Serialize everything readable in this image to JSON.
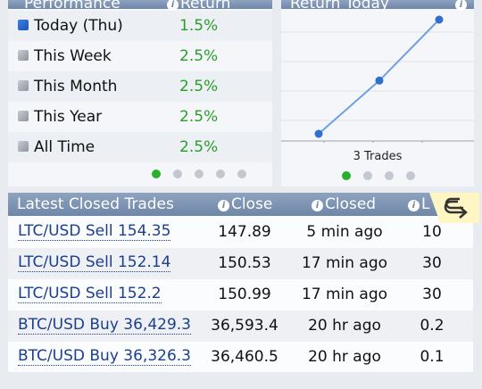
{
  "performance": {
    "title": "Performance",
    "return_label": "Return",
    "rows": [
      {
        "label": "Today (Thu)",
        "value": "1.5%",
        "active": true
      },
      {
        "label": "This Week",
        "value": "2.5%",
        "active": false
      },
      {
        "label": "This Month",
        "value": "2.5%",
        "active": false
      },
      {
        "label": "This Year",
        "value": "2.5%",
        "active": false
      },
      {
        "label": "All Time",
        "value": "2.5%",
        "active": false
      }
    ],
    "pager": {
      "count": 5,
      "active": 0
    }
  },
  "return_today": {
    "title": "Return Today",
    "trades_label": "3 Trades",
    "pager": {
      "count": 4,
      "active": 0
    },
    "chart_data": {
      "type": "line",
      "x": [
        1,
        2,
        3
      ],
      "y": [
        0.0,
        0.7,
        1.5
      ],
      "xlabel": "3 Trades",
      "grid": true,
      "point_color": "#2f6fd0",
      "line_color": "#6fa0e0"
    }
  },
  "closed_trades": {
    "title": "Latest Closed Trades",
    "columns": {
      "close": "Close",
      "closed": "Closed",
      "lots": "L"
    },
    "rows": [
      {
        "pair": "LTC/USD Sell 154.35",
        "close": "147.89",
        "closed": "5 min ago",
        "lots": "10"
      },
      {
        "pair": "LTC/USD Sell 152.14",
        "close": "150.53",
        "closed": "17 min ago",
        "lots": "30"
      },
      {
        "pair": "LTC/USD Sell 152.2",
        "close": "150.99",
        "closed": "17 min ago",
        "lots": "30"
      },
      {
        "pair": "BTC/USD Buy 36,429.3",
        "close": "36,593.4",
        "closed": "20 hr ago",
        "lots": "0.2"
      },
      {
        "pair": "BTC/USD Buy 36,326.3",
        "close": "36,460.5",
        "closed": "20 hr ago",
        "lots": "0.1"
      }
    ]
  },
  "icons": {
    "info": "i",
    "share": "share-arrow-icon"
  },
  "colors": {
    "header": "#7a8fb0",
    "positive": "#2a9d2a",
    "link": "#1a3f8f",
    "accent_tab": "#fff6c4"
  }
}
